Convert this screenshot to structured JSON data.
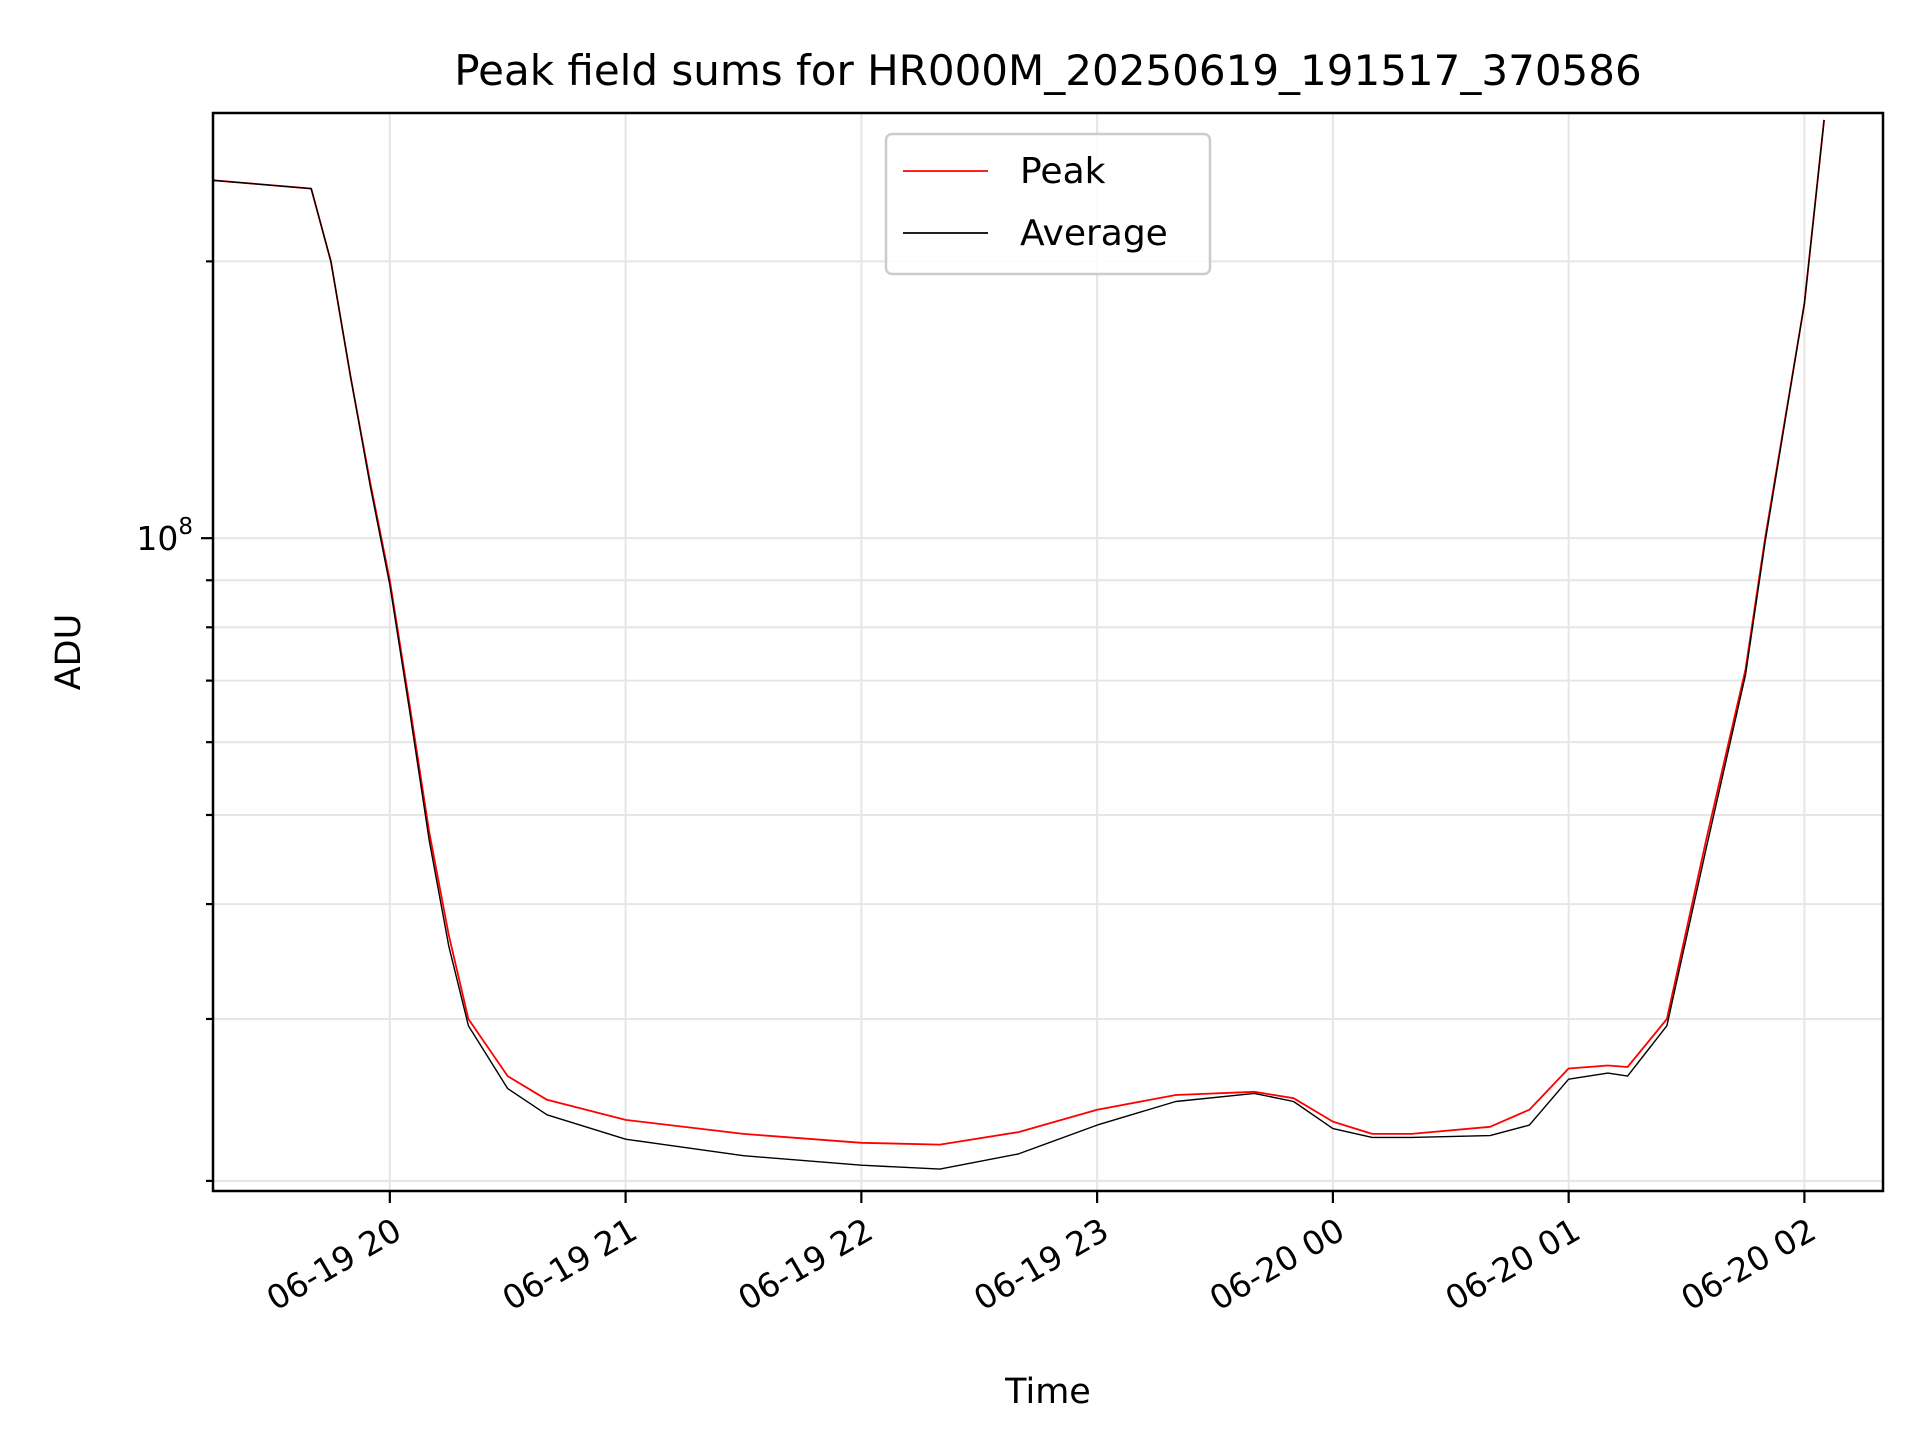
{
  "chart_data": {
    "type": "line",
    "title": "Peak field sums for HR000M_20250619_191517_370586",
    "xlabel": "Time",
    "ylabel": "ADU",
    "x_type": "time",
    "xlim": [
      "2025-06-19 19:15",
      "2025-06-20 02:20"
    ],
    "ylim": [
      19500000,
      290000000
    ],
    "y_scale": "log",
    "grid": true,
    "legend_position": "top-center",
    "x_ticks": [
      {
        "value": "2025-06-19 20:00",
        "label": "06-19 20"
      },
      {
        "value": "2025-06-19 21:00",
        "label": "06-19 21"
      },
      {
        "value": "2025-06-19 22:00",
        "label": "06-19 22"
      },
      {
        "value": "2025-06-19 23:00",
        "label": "06-19 23"
      },
      {
        "value": "2025-06-20 00:00",
        "label": "06-20 00"
      },
      {
        "value": "2025-06-20 01:00",
        "label": "06-20 01"
      },
      {
        "value": "2025-06-20 02:00",
        "label": "06-20 02"
      }
    ],
    "y_ticks_major": [
      {
        "value": 100000000,
        "label_base": "10",
        "label_exp": "8"
      }
    ],
    "y_ticks_minor": [
      20000000,
      30000000,
      40000000,
      50000000,
      60000000,
      70000000,
      80000000,
      90000000,
      200000000
    ],
    "series": [
      {
        "name": "Peak",
        "color": "#ff0000",
        "x": [
          "2025-06-19 19:15",
          "2025-06-19 19:40",
          "2025-06-19 19:45",
          "2025-06-19 19:50",
          "2025-06-19 19:55",
          "2025-06-19 20:00",
          "2025-06-19 20:05",
          "2025-06-19 20:10",
          "2025-06-19 20:15",
          "2025-06-19 20:20",
          "2025-06-19 20:30",
          "2025-06-19 20:40",
          "2025-06-19 21:00",
          "2025-06-19 21:30",
          "2025-06-19 22:00",
          "2025-06-19 22:20",
          "2025-06-19 22:40",
          "2025-06-19 23:00",
          "2025-06-19 23:20",
          "2025-06-19 23:40",
          "2025-06-19 23:50",
          "2025-06-20 00:00",
          "2025-06-20 00:10",
          "2025-06-20 00:20",
          "2025-06-20 00:40",
          "2025-06-20 00:50",
          "2025-06-20 01:00",
          "2025-06-20 01:10",
          "2025-06-20 01:15",
          "2025-06-20 01:25",
          "2025-06-20 01:35",
          "2025-06-20 01:45",
          "2025-06-20 01:50",
          "2025-06-20 02:00",
          "2025-06-20 02:05"
        ],
        "values": [
          245000000,
          240000000,
          200000000,
          150000000,
          115000000,
          90000000,
          66000000,
          48000000,
          37000000,
          30000000,
          26000000,
          24500000,
          23300000,
          22500000,
          22000000,
          21900000,
          22600000,
          23900000,
          24800000,
          25000000,
          24600000,
          23200000,
          22500000,
          22500000,
          22900000,
          23900000,
          26500000,
          26700000,
          26600000,
          30000000,
          47000000,
          72000000,
          100000000,
          180000000,
          285000000
        ]
      },
      {
        "name": "Average",
        "color": "#000000",
        "x": [
          "2025-06-19 19:15",
          "2025-06-19 19:40",
          "2025-06-19 19:45",
          "2025-06-19 19:50",
          "2025-06-19 19:55",
          "2025-06-19 20:00",
          "2025-06-19 20:05",
          "2025-06-19 20:10",
          "2025-06-19 20:15",
          "2025-06-19 20:20",
          "2025-06-19 20:30",
          "2025-06-19 20:40",
          "2025-06-19 21:00",
          "2025-06-19 21:30",
          "2025-06-19 22:00",
          "2025-06-19 22:20",
          "2025-06-19 22:40",
          "2025-06-19 23:00",
          "2025-06-19 23:20",
          "2025-06-19 23:40",
          "2025-06-19 23:50",
          "2025-06-20 00:00",
          "2025-06-20 00:10",
          "2025-06-20 00:20",
          "2025-06-20 00:40",
          "2025-06-20 00:50",
          "2025-06-20 01:00",
          "2025-06-20 01:10",
          "2025-06-20 01:15",
          "2025-06-20 01:25",
          "2025-06-20 01:35",
          "2025-06-20 01:45",
          "2025-06-20 01:50",
          "2025-06-20 02:00",
          "2025-06-20 02:05"
        ],
        "values": [
          245000000,
          240000000,
          200000000,
          150000000,
          114000000,
          89000000,
          65000000,
          47000000,
          36000000,
          29500000,
          25200000,
          23600000,
          22200000,
          21300000,
          20800000,
          20600000,
          21400000,
          23000000,
          24400000,
          24900000,
          24400000,
          22800000,
          22300000,
          22300000,
          22400000,
          23000000,
          25800000,
          26200000,
          26000000,
          29500000,
          46000000,
          71000000,
          99000000,
          180000000,
          285000000
        ]
      }
    ]
  }
}
